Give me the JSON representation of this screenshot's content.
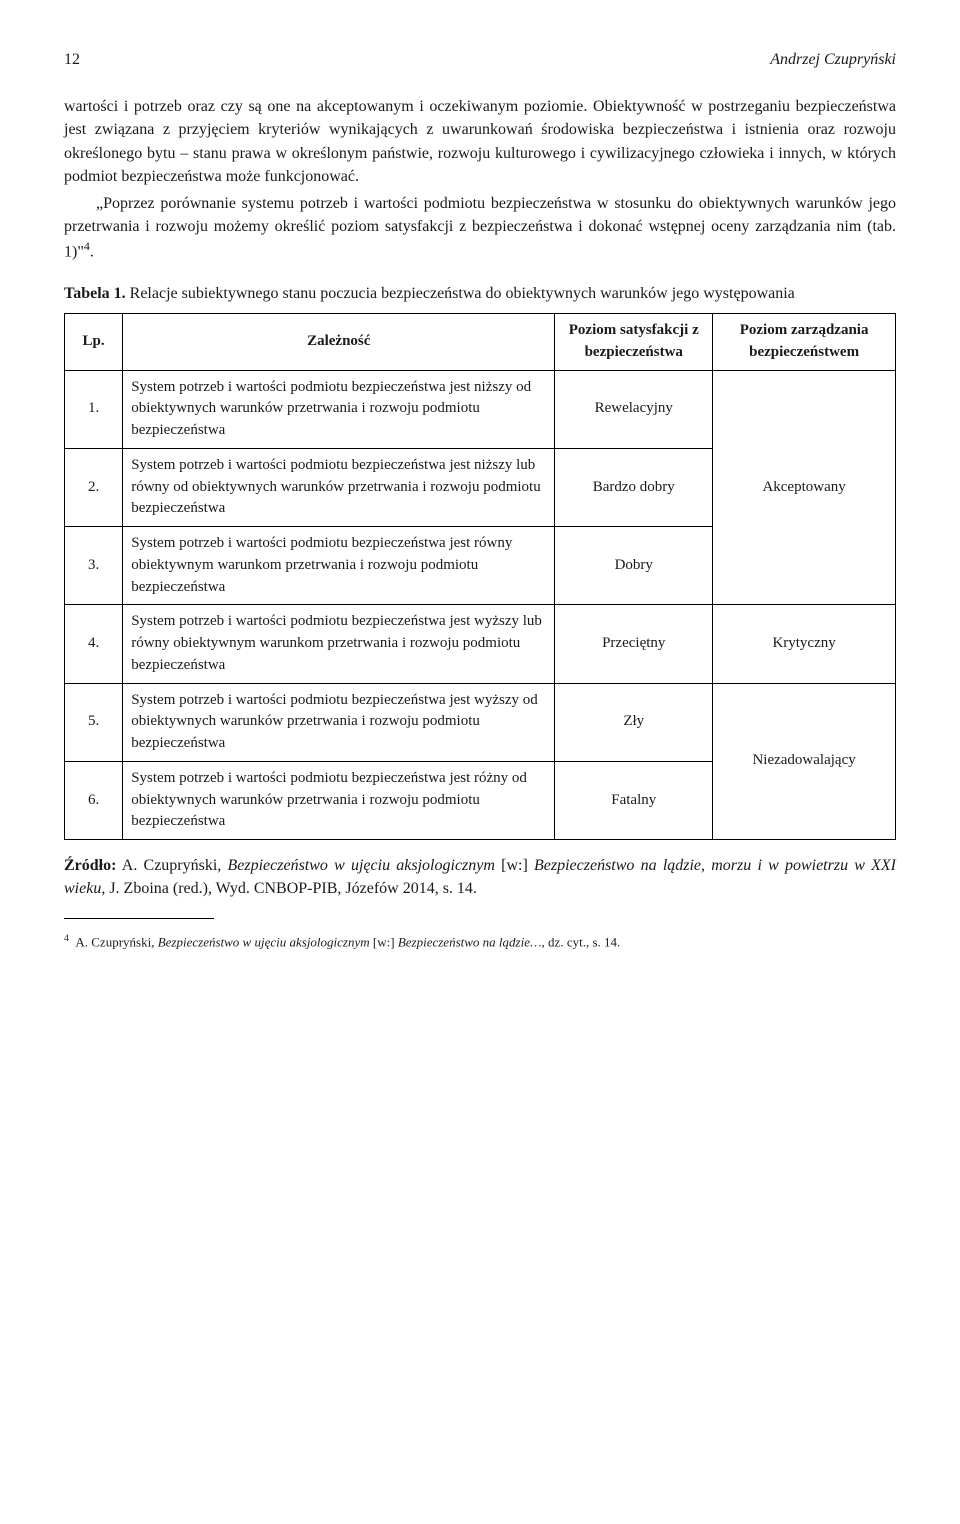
{
  "header": {
    "page_number": "12",
    "author": "Andrzej Czupryński"
  },
  "paragraphs": {
    "p1": "wartości i potrzeb oraz czy są one na akceptowanym i oczekiwanym poziomie. Obiektywność w postrzeganiu bezpieczeństwa jest związana z przyjęciem kryteriów wynikających z uwarunkowań środowiska bezpieczeństwa i istnienia oraz rozwoju określonego bytu – stanu prawa w określonym państwie, rozwoju kulturowego i cywilizacyjnego człowieka i innych, w których podmiot bezpieczeństwa może funkcjonować.",
    "p2a": "„Poprzez porównanie systemu potrzeb i wartości podmiotu bezpieczeństwa w stosunku do obiektywnych warunków jego przetrwania i rozwoju możemy określić poziom satysfakcji z bezpieczeństwa i dokonać wstępnej oceny zarządzania nim (tab. 1)\"",
    "p2_sup": "4",
    "p2b": "."
  },
  "table_caption": {
    "label": "Tabela 1.",
    "text": " Relacje subiektywnego stanu poczucia bezpieczeństwa do obiektywnych warunków jego występowania"
  },
  "table": {
    "headers": {
      "lp": "Lp.",
      "zaleznosc": "Zależność",
      "poziom_sat": "Poziom satysfakcji z bezpieczeństwa",
      "poziom_zar": "Poziom zarządzania bezpieczeństwem"
    },
    "rows": [
      {
        "num": "1.",
        "zal": "System potrzeb i wartości podmiotu bezpieczeństwa jest niższy od obiektywnych warunków przetrwania i rozwoju podmiotu bezpieczeństwa",
        "sat": "Rewelacyjny"
      },
      {
        "num": "2.",
        "zal": "System potrzeb i wartości podmiotu bezpieczeństwa jest niższy lub równy od obiektywnych warunków przetrwania i rozwoju podmiotu bezpieczeństwa",
        "sat": "Bardzo dobry"
      },
      {
        "num": "3.",
        "zal": "System potrzeb i wartości podmiotu bezpieczeństwa jest równy obiektywnym warunkom przetrwania i rozwoju podmiotu bezpieczeństwa",
        "sat": "Dobry"
      },
      {
        "num": "4.",
        "zal": "System potrzeb i wartości podmiotu bezpieczeństwa jest wyższy lub równy obiektywnym warunkom przetrwania i rozwoju podmiotu bezpieczeństwa",
        "sat": "Przeciętny"
      },
      {
        "num": "5.",
        "zal": "System potrzeb i wartości podmiotu bezpieczeństwa jest wyższy od obiektywnych warunków przetrwania i rozwoju podmiotu bezpieczeństwa",
        "sat": "Zły"
      },
      {
        "num": "6.",
        "zal": "System potrzeb i wartości podmiotu bezpieczeństwa jest różny od obiektywnych warunków przetrwania i rozwoju podmiotu bezpieczeństwa",
        "sat": "Fatalny"
      }
    ],
    "zar_groups": [
      {
        "label": "Akceptowany",
        "rowspan": 3
      },
      {
        "label": "Krytyczny",
        "rowspan": 1
      },
      {
        "label": "Niezadowalający",
        "rowspan": 2
      }
    ]
  },
  "source": {
    "label": "Źródło:",
    "text_a": " A. Czupryński, ",
    "ital_a": "Bezpieczeństwo w ujęciu aksjologicznym",
    "text_b": " [w:] ",
    "ital_b": "Bezpieczeństwo na lądzie, morzu i w powietrzu w XXI wieku",
    "text_c": ", J. Zboina (red.), Wyd. CNBOP-PIB, Józefów 2014, s. 14."
  },
  "footnote": {
    "num": "4",
    "text_a": "A. Czupryński, ",
    "ital_a": "Bezpieczeństwo w ujęciu aksjologicznym",
    "text_b": " [w:] ",
    "ital_b": "Bezpieczeństwo na lądzie…",
    "text_c": ", dz. cyt., s. 14."
  }
}
